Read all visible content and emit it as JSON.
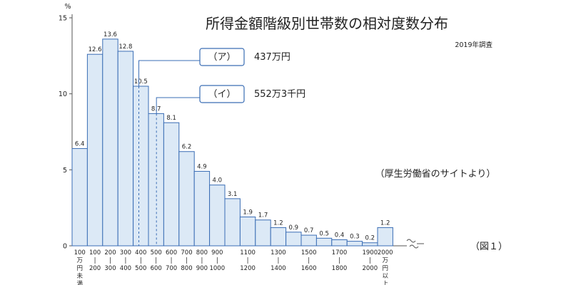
{
  "chart_data": {
    "type": "bar",
    "title": "所得金額階級別世帯数の相対度数分布",
    "subtitle": "2019年調査",
    "source": "（厚生労働省のサイトより）",
    "figure_label": "（図１）",
    "ylabel": "%",
    "ylim": [
      0,
      15
    ],
    "yticks": [
      "0",
      "5",
      "10",
      "15"
    ],
    "categories": [
      {
        "label_top": "100",
        "label_sub": [
          "万",
          "円",
          "未",
          "満"
        ]
      },
      {
        "label_top": "100",
        "label_sub": [
          "|",
          "200"
        ]
      },
      {
        "label_top": "200",
        "label_sub": [
          "|",
          "300"
        ]
      },
      {
        "label_top": "300",
        "label_sub": [
          "|",
          "400"
        ]
      },
      {
        "label_top": "400",
        "label_sub": [
          "|",
          "500"
        ]
      },
      {
        "label_top": "500",
        "label_sub": [
          "|",
          "600"
        ]
      },
      {
        "label_top": "600",
        "label_sub": [
          "|",
          "700"
        ]
      },
      {
        "label_top": "700",
        "label_sub": [
          "|",
          "800"
        ]
      },
      {
        "label_top": "800",
        "label_sub": [
          "|",
          "900"
        ]
      },
      {
        "label_top": "900",
        "label_sub": [
          "|",
          "1000"
        ]
      },
      {
        "label_top": "",
        "label_sub": []
      },
      {
        "label_top": "1100",
        "label_sub": [
          "|",
          "1200"
        ]
      },
      {
        "label_top": "",
        "label_sub": []
      },
      {
        "label_top": "1300",
        "label_sub": [
          "|",
          "1400"
        ]
      },
      {
        "label_top": "",
        "label_sub": []
      },
      {
        "label_top": "1500",
        "label_sub": [
          "|",
          "1600"
        ]
      },
      {
        "label_top": "",
        "label_sub": []
      },
      {
        "label_top": "1700",
        "label_sub": [
          "|",
          "1800"
        ]
      },
      {
        "label_top": "",
        "label_sub": []
      },
      {
        "label_top": "1900",
        "label_sub": [
          "|",
          "2000"
        ]
      },
      {
        "label_top": "2000",
        "label_sub": [
          "万",
          "円",
          "以",
          "上"
        ]
      }
    ],
    "values": [
      6.4,
      12.6,
      13.6,
      12.8,
      10.5,
      8.7,
      8.1,
      6.2,
      4.9,
      4.0,
      3.1,
      1.9,
      1.7,
      1.2,
      0.9,
      0.7,
      0.5,
      0.4,
      0.3,
      0.2,
      1.2
    ],
    "value_labels": [
      "6.4",
      "12.6",
      "13.6",
      "12.8",
      "10.5",
      "8.7",
      "8.1",
      "6.2",
      "4.9",
      "4.0",
      "3.1",
      "1.9",
      "1.7",
      "1.2",
      "0.9",
      "0.7",
      "0.5",
      "0.4",
      "0.3",
      "0.2",
      "1.2"
    ],
    "annotations": [
      {
        "box": "（ア）",
        "value": "437万円",
        "x_value": 437
      },
      {
        "box": "（イ）",
        "value": "552万3千円",
        "x_value": 552.3
      }
    ],
    "grid": false
  }
}
